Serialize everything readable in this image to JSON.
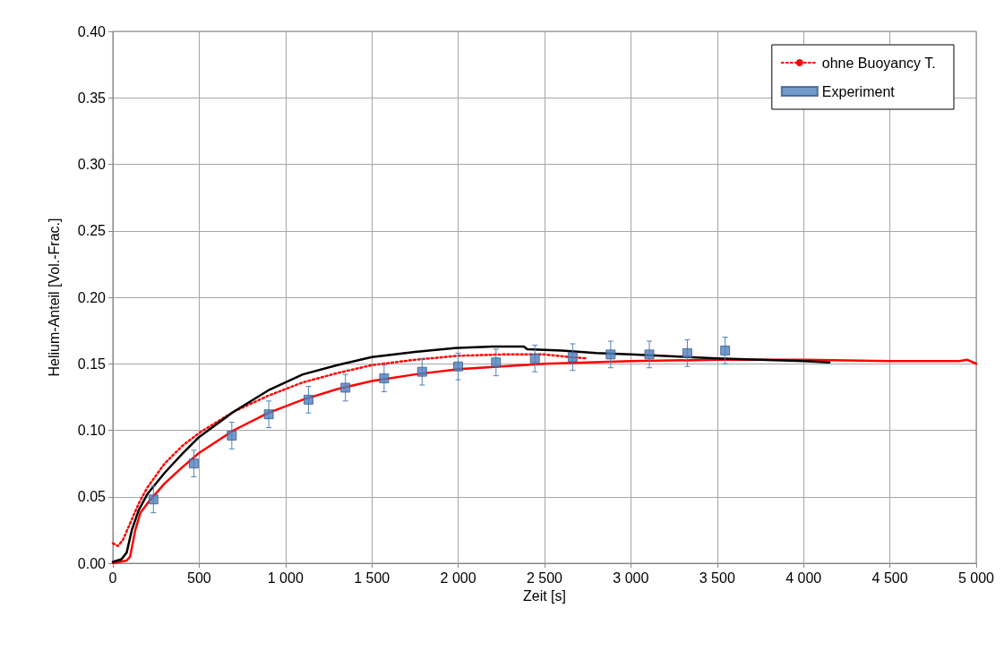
{
  "chart_data": {
    "type": "line",
    "xlabel": "Zeit [s]",
    "ylabel": "Helium-Anteil [Vol.-Frac.]",
    "xlim": [
      0,
      5000
    ],
    "ylim": [
      0,
      0.4
    ],
    "xticks": [
      0,
      500,
      {
        "value": 1000,
        "label": "1 000"
      },
      {
        "value": 1500,
        "label": "1 500"
      },
      {
        "value": 2000,
        "label": "2 000"
      },
      {
        "value": 2500,
        "label": "2 500"
      },
      {
        "value": 3000,
        "label": "3 000"
      },
      {
        "value": 3500,
        "label": "3 500"
      },
      {
        "value": 4000,
        "label": "4 000"
      },
      {
        "value": 4500,
        "label": "4 500"
      },
      {
        "value": 5000,
        "label": "5 000"
      }
    ],
    "yticks": [
      {
        "value": 0,
        "label": "0.00"
      },
      {
        "value": 0.05,
        "label": "0.05"
      },
      {
        "value": 0.1,
        "label": "0.10"
      },
      {
        "value": 0.15,
        "label": "0.15"
      },
      {
        "value": 0.2,
        "label": "0.20"
      },
      {
        "value": 0.25,
        "label": "0.25"
      },
      {
        "value": 0.3,
        "label": "0.30"
      },
      {
        "value": 0.35,
        "label": "0.35"
      },
      {
        "value": 0.4,
        "label": "0.40"
      }
    ],
    "grid": true,
    "legend": "top right",
    "series": [
      {
        "type": "line",
        "color": "#ff0000",
        "line_style": "solid",
        "marker": "none",
        "x": [
          0,
          80,
          100,
          130,
          160,
          200,
          300,
          400,
          500,
          700,
          900,
          1100,
          1300,
          1500,
          1750,
          2000,
          2250,
          2500,
          2750,
          3000,
          3500,
          4000,
          4500,
          4900,
          4950,
          5000
        ],
        "values": [
          0,
          0.002,
          0.005,
          0.025,
          0.038,
          0.045,
          0.06,
          0.072,
          0.083,
          0.1,
          0.113,
          0.123,
          0.131,
          0.137,
          0.142,
          0.146,
          0.148,
          0.15,
          0.151,
          0.152,
          0.153,
          0.153,
          0.152,
          0.152,
          0.153,
          0.15
        ]
      },
      {
        "type": "line",
        "name": "ohne Buoyancy T.",
        "color": "#ff0000",
        "line_style": "dotted",
        "marker": "none",
        "x": [
          0,
          30,
          60,
          100,
          150,
          200,
          300,
          400,
          500,
          700,
          900,
          1100,
          1300,
          1500,
          1750,
          2000,
          2250,
          2500,
          2650,
          2750
        ],
        "values": [
          0.015,
          0.013,
          0.018,
          0.03,
          0.045,
          0.057,
          0.075,
          0.088,
          0.098,
          0.114,
          0.126,
          0.136,
          0.143,
          0.149,
          0.153,
          0.156,
          0.157,
          0.157,
          0.155,
          0.154
        ]
      },
      {
        "type": "line",
        "color": "#000000",
        "line_style": "solid",
        "marker": "none",
        "x": [
          0,
          50,
          80,
          110,
          150,
          200,
          300,
          400,
          500,
          700,
          900,
          1100,
          1300,
          1500,
          1750,
          2000,
          2200,
          2380,
          2400,
          2600,
          2800,
          3000,
          3500,
          4000,
          4150
        ],
        "values": [
          0.001,
          0.003,
          0.008,
          0.025,
          0.04,
          0.052,
          0.068,
          0.082,
          0.095,
          0.114,
          0.13,
          0.142,
          0.149,
          0.155,
          0.159,
          0.162,
          0.163,
          0.163,
          0.161,
          0.16,
          0.158,
          0.157,
          0.154,
          0.152,
          0.151
        ]
      },
      {
        "type": "scatter",
        "name": "Experiment",
        "color": "#4f81bd",
        "marker": "square",
        "x": [
          235,
          469,
          689,
          903,
          1133,
          1347,
          1571,
          1791,
          2000,
          2219,
          2444,
          2663,
          2883,
          3107,
          3327,
          3546
        ],
        "values": [
          0.048,
          0.075,
          0.096,
          0.112,
          0.123,
          0.132,
          0.139,
          0.144,
          0.148,
          0.151,
          0.154,
          0.155,
          0.157,
          0.157,
          0.158,
          0.16
        ],
        "errors": [
          0.01,
          0.01,
          0.01,
          0.01,
          0.01,
          0.01,
          0.01,
          0.01,
          0.01,
          0.01,
          0.01,
          0.01,
          0.01,
          0.01,
          0.01,
          0.01
        ]
      }
    ]
  }
}
